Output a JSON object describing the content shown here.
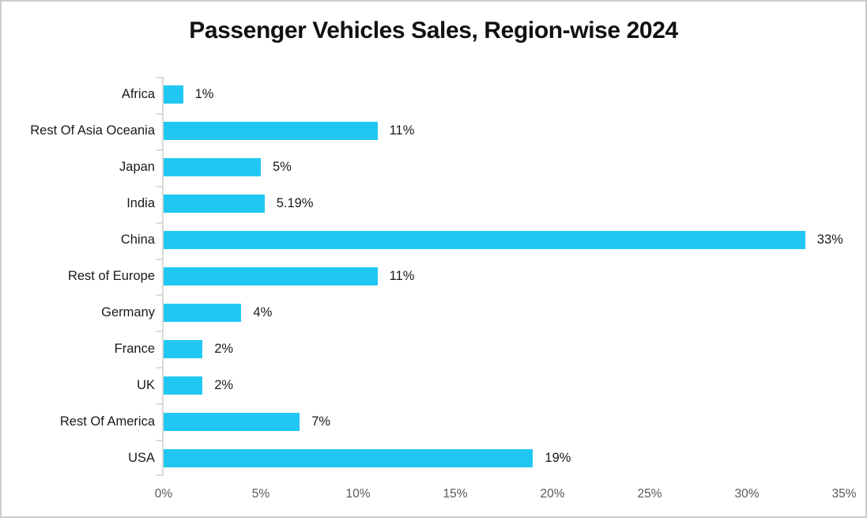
{
  "colors": {
    "bar": "#21C7F3",
    "axis": "#D9D9D9",
    "tick_label": "#595959",
    "category_label": "#1a1a1a",
    "value_label": "#1a1a1a",
    "title": "#111111",
    "frame_border": "#cccccc",
    "background": "#ffffff"
  },
  "chart_data": {
    "type": "bar",
    "orientation": "horizontal",
    "title": "Passenger Vehicles Sales, Region-wise 2024",
    "categories_top_to_bottom": [
      "Africa",
      "Rest Of Asia Oceania",
      "Japan",
      "India",
      "China",
      "Rest of Europe",
      "Germany",
      "France",
      "UK",
      "Rest Of America",
      "USA"
    ],
    "values": [
      1,
      11,
      5,
      5.19,
      33,
      11,
      4,
      2,
      2,
      7,
      19
    ],
    "data_labels": [
      "1%",
      "11%",
      "5%",
      "5.19%",
      "33%",
      "11%",
      "4%",
      "2%",
      "2%",
      "7%",
      "19%"
    ],
    "x_ticks": [
      "0%",
      "5%",
      "10%",
      "15%",
      "20%",
      "25%",
      "30%",
      "35%"
    ],
    "xlim": [
      0,
      35
    ],
    "xlabel": "",
    "ylabel": "",
    "grid": false,
    "legend": false,
    "data_label_position": "outside-end"
  }
}
